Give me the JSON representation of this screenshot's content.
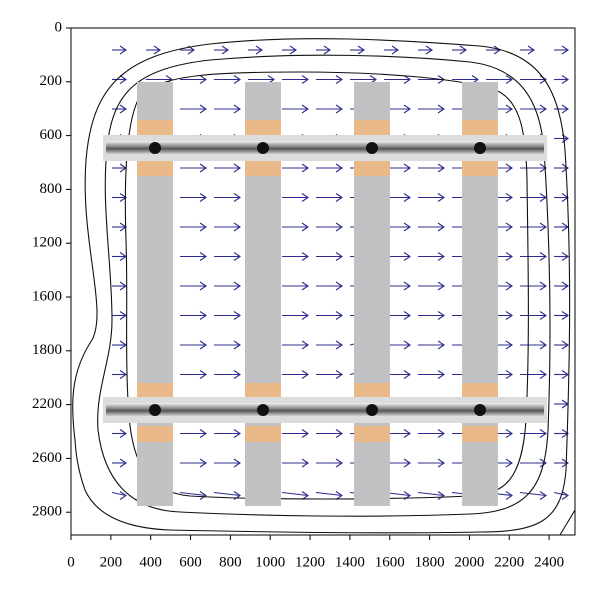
{
  "chart_data": {
    "type": "vector-field",
    "xlim": [
      0,
      2530
    ],
    "xticks": [
      0,
      200,
      400,
      600,
      800,
      1000,
      1200,
      1400,
      1600,
      1800,
      2000,
      2200,
      2400
    ],
    "yticks": [
      "0",
      "200",
      "600",
      "800",
      "1200",
      "1600",
      "1800",
      "2200",
      "2600",
      "2800"
    ],
    "arrow_color": "#2e2d8f"
  }
}
